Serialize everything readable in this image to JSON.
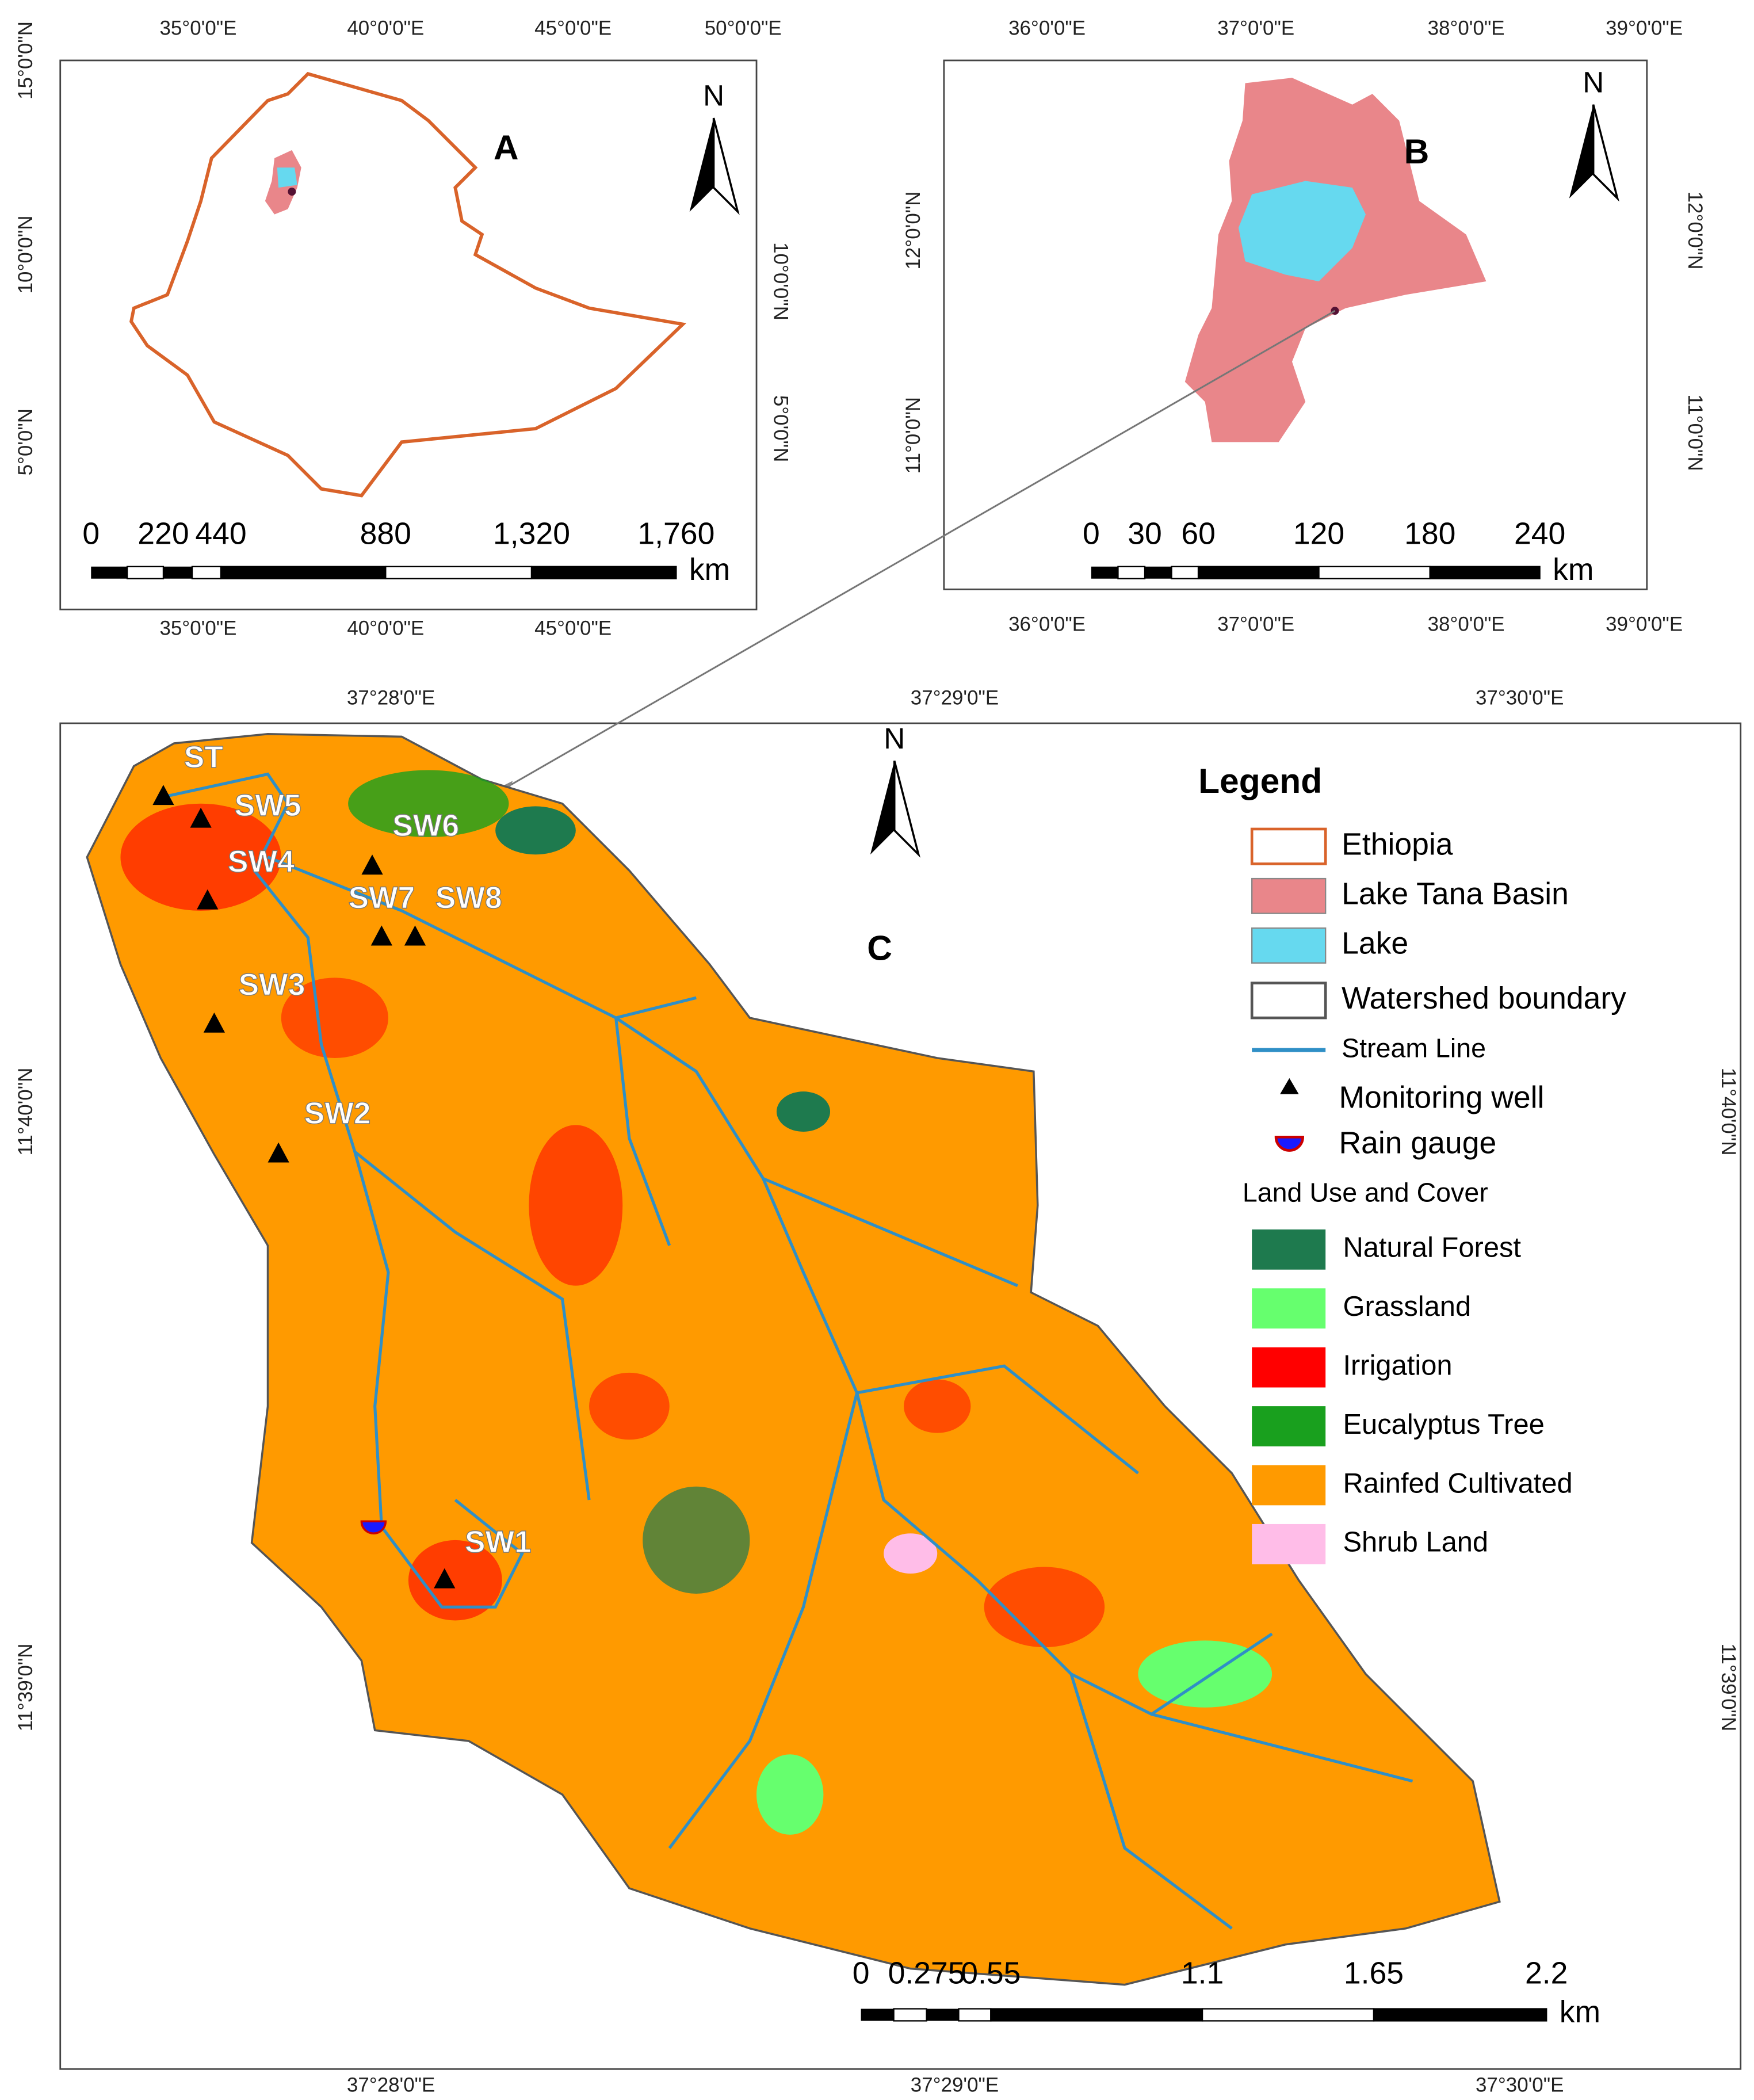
{
  "panels": [
    {
      "letter": "A",
      "north": "N",
      "top_labels": [
        "35°0'0\"E",
        "40°0'0\"E",
        "45°0'0\"E",
        "50°0'0\"E"
      ],
      "bottom_labels": [
        "35°0'0\"E",
        "40°0'0\"E",
        "45°0'0\"E"
      ],
      "left_labels": [
        "15°0'0\"N",
        "10°0'0\"N",
        "5°0'0\"N"
      ],
      "right_labels": [
        "10°0'0\"N",
        "5°0'0\"N"
      ],
      "scale_labels": [
        "0",
        "220",
        "440",
        "880",
        "1,320",
        "1,760"
      ],
      "scale_unit": "km"
    },
    {
      "letter": "B",
      "north": "N",
      "top_labels": [
        "36°0'0\"E",
        "37°0'0\"E",
        "38°0'0\"E",
        "39°0'0\"E"
      ],
      "bottom_labels": [
        "36°0'0\"E",
        "37°0'0\"E",
        "38°0'0\"E",
        "39°0'0\"E"
      ],
      "left_labels": [
        "12°0'0\"N",
        "11°0'0\"N"
      ],
      "right_labels": [
        "12°0'0\"N",
        "11°0'0\"N"
      ],
      "scale_labels": [
        "0",
        "30",
        "60",
        "120",
        "180",
        "240"
      ],
      "scale_unit": "km"
    },
    {
      "letter": "C",
      "north": "N",
      "top_labels": [
        "37°28'0\"E",
        "37°29'0\"E",
        "37°30'0\"E"
      ],
      "bottom_labels": [
        "37°28'0\"E",
        "37°29'0\"E",
        "37°30'0\"E"
      ],
      "left_labels": [
        "11°40'0\"N",
        "11°39'0\"N"
      ],
      "right_labels": [
        "11°40'0\"N",
        "11°39'0\"N"
      ],
      "scale_labels": [
        "0",
        "0.275",
        "0.55",
        "1.1",
        "1.65",
        "2.2"
      ],
      "scale_unit": "km"
    }
  ],
  "wells": [
    "ST",
    "SW5",
    "SW4",
    "SW6",
    "SW7",
    "SW8",
    "SW3",
    "SW2",
    "SW1"
  ],
  "legend": {
    "title": "Legend",
    "items": [
      {
        "label": "Ethiopia",
        "symbol": "outline",
        "color": "#d9632a"
      },
      {
        "label": "Lake Tana Basin",
        "symbol": "fill",
        "color": "#e9868a"
      },
      {
        "label": "Lake",
        "symbol": "fill",
        "color": "#66d9ef"
      },
      {
        "label": "Watershed boundary",
        "symbol": "outline",
        "color": "#555555"
      },
      {
        "label": "Stream Line",
        "symbol": "line",
        "color": "#2f8fc6"
      },
      {
        "label": "Monitoring well",
        "symbol": "triangle",
        "color": "#000000"
      },
      {
        "label": "Rain gauge",
        "symbol": "gauge",
        "color": "#1a1aff"
      }
    ],
    "subtitle": "Land Use and Cover",
    "classes": [
      {
        "label": "Natural Forest",
        "color": "#1e7a4e"
      },
      {
        "label": "Grassland",
        "color": "#66ff6e"
      },
      {
        "label": "Irrigation",
        "color": "#ff0000"
      },
      {
        "label": "Eucalyptus Tree",
        "color": "#19a01e"
      },
      {
        "label": "Rainfed Cultivated",
        "color": "#ff9a00"
      },
      {
        "label": "Shrub Land",
        "color": "#ffbde8"
      }
    ]
  }
}
